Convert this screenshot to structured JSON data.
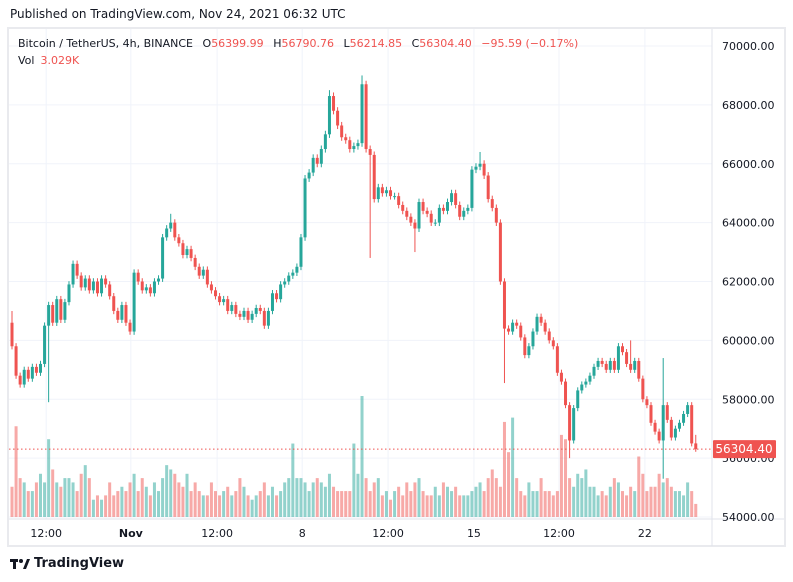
{
  "published": "Published on TradingView.com, Nov 24, 2021 06:32 UTC",
  "legend": {
    "symbol": "Bitcoin / TetherUS, 4h, BINANCE",
    "o_label": "O",
    "o": "56399.99",
    "h_label": "H",
    "h": "56790.76",
    "l_label": "L",
    "l": "56214.85",
    "c_label": "C",
    "c": "56304.40",
    "change": "−95.59 (−0.17%)",
    "vol_label": "Vol",
    "vol": "3.029K"
  },
  "footer": {
    "brand": "TradingView",
    "logo_mark": "17"
  },
  "colors": {
    "up": "#26a69a",
    "down": "#ef5350",
    "grid": "#f0f3fa",
    "text": "#131722"
  },
  "chart_data": {
    "type": "candlestick",
    "symbol": "BTCUSDT",
    "interval": "4h",
    "ylim": [
      54000,
      70000
    ],
    "y_ticks": [
      "54000.00",
      "56000.00",
      "58000.00",
      "60000.00",
      "62000.00",
      "64000.00",
      "66000.00",
      "68000.00",
      "70000.00"
    ],
    "x_ticks": [
      {
        "label": "12:00",
        "index": 8.4
      },
      {
        "label": "Nov",
        "index": 29.2,
        "bold": true
      },
      {
        "label": "12:00",
        "index": 50.4
      },
      {
        "label": "8",
        "index": 71.3
      },
      {
        "label": "12:00",
        "index": 92.4
      },
      {
        "label": "15",
        "index": 113.5
      },
      {
        "label": "12:00",
        "index": 134.4
      },
      {
        "label": "22",
        "index": 155.5
      }
    ],
    "last_price_label": "56304.40",
    "last_price": 56304.4,
    "first_open": 60600,
    "close": [
      59800,
      58800,
      58500,
      59000,
      58700,
      59100,
      58900,
      59200,
      60500,
      61200,
      60600,
      61400,
      60700,
      61300,
      61900,
      62600,
      62200,
      61800,
      62100,
      61700,
      62000,
      61600,
      62100,
      61900,
      61500,
      61000,
      60700,
      61200,
      60600,
      60300,
      62300,
      62000,
      61700,
      61800,
      61600,
      62000,
      62100,
      63500,
      63800,
      64000,
      63500,
      63300,
      62900,
      63100,
      62800,
      62500,
      62200,
      62400,
      61900,
      61700,
      61500,
      61300,
      61400,
      61000,
      61200,
      60900,
      60800,
      61000,
      60700,
      60900,
      61100,
      61000,
      60500,
      61000,
      61600,
      61400,
      61900,
      62000,
      62200,
      62300,
      62500,
      63500,
      65500,
      65700,
      66200,
      66000,
      66500,
      67000,
      68300,
      67800,
      67300,
      66900,
      66800,
      66500,
      66600,
      66700,
      68700,
      66500,
      66300,
      64800,
      65200,
      65000,
      65100,
      64900,
      64900,
      64600,
      64400,
      64200,
      64000,
      63800,
      64700,
      64400,
      64300,
      64000,
      64000,
      64500,
      64400,
      64700,
      65000,
      64600,
      64200,
      64400,
      64500,
      65800,
      65900,
      66000,
      65600,
      64800,
      64500,
      64000,
      62000,
      60400,
      60300,
      60600,
      60500,
      60100,
      59500,
      59800,
      60300,
      60800,
      60600,
      60300,
      60000,
      59800,
      58900,
      58600,
      57800,
      56600,
      57700,
      58300,
      58500,
      58600,
      58800,
      59100,
      59300,
      59200,
      59000,
      59300,
      59000,
      59800,
      59600,
      59200,
      59000,
      59300,
      58700,
      58000,
      57800,
      57200,
      56900,
      56600,
      57800,
      57300,
      56700,
      57000,
      57200,
      57500,
      57800,
      56500,
      56304.4
    ],
    "wick_default_pct": 0.3,
    "wick_overrides": [
      {
        "index": 0,
        "high": 61000
      },
      {
        "index": 9,
        "low": 57900
      },
      {
        "index": 39,
        "high": 64300
      },
      {
        "index": 78,
        "high": 68500
      },
      {
        "index": 86,
        "high": 69000
      },
      {
        "index": 88,
        "low": 62800
      },
      {
        "index": 99,
        "low": 63000
      },
      {
        "index": 115,
        "high": 66400
      },
      {
        "index": 121,
        "low": 58550
      },
      {
        "index": 137,
        "low": 56000
      },
      {
        "index": 152,
        "high": 60000
      },
      {
        "index": 160,
        "low": 55300,
        "high": 59400
      },
      {
        "index": 168,
        "high": 56790.76,
        "low": 56214.85
      }
    ],
    "volume_unit": "K",
    "volume": [
      7,
      21,
      9,
      8,
      6,
      6,
      8,
      10,
      8,
      18,
      11,
      8,
      7,
      9,
      9,
      8,
      6,
      10,
      12,
      9,
      4,
      5,
      4,
      5,
      8,
      5,
      6,
      7,
      6,
      8,
      10,
      6,
      9,
      7,
      5,
      8,
      6,
      9,
      12,
      11,
      10,
      8,
      7,
      10,
      6,
      8,
      6,
      5,
      5,
      8,
      6,
      5,
      6,
      7,
      5,
      6,
      9,
      7,
      5,
      4,
      5,
      6,
      8,
      5,
      7,
      5,
      6,
      8,
      9,
      17,
      9,
      9,
      8,
      6,
      8,
      9,
      8,
      7,
      10,
      7,
      6,
      6,
      6,
      6,
      17,
      10,
      28,
      9,
      6,
      8,
      9,
      5,
      6,
      4,
      6,
      7,
      5,
      8,
      6,
      8,
      9,
      6,
      5,
      5,
      7,
      5,
      8,
      7,
      6,
      7,
      5,
      5,
      5,
      6,
      7,
      8,
      6,
      9,
      11,
      9,
      7,
      22,
      15,
      23,
      9,
      6,
      5,
      8,
      6,
      6,
      9,
      6,
      6,
      5,
      6,
      19,
      18,
      9,
      7,
      10,
      9,
      11,
      7,
      7,
      5,
      6,
      5,
      7,
      9,
      8,
      6,
      5,
      7,
      6,
      14,
      10,
      6,
      7,
      7,
      10,
      8,
      9,
      7,
      6,
      6,
      5,
      8,
      6,
      3.029
    ]
  }
}
